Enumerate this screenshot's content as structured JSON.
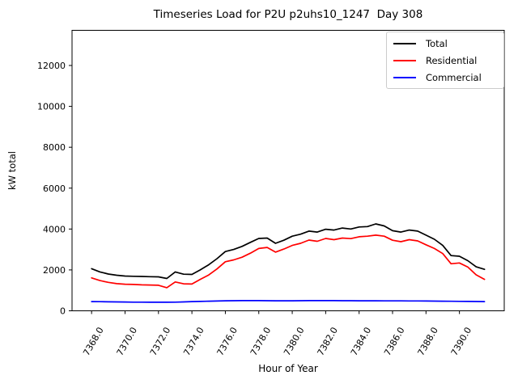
{
  "chart_data": {
    "type": "line",
    "title": "Timeseries Load for P2U p2uhs10_1247  Day 308",
    "xlabel": "Hour of Year",
    "ylabel": "kW total",
    "grid": false,
    "legend_position": "upper right",
    "xlim": [
      7366.83,
      7392.68
    ],
    "ylim": [
      0,
      13720
    ],
    "x_start": 7368.0,
    "x_step": 0.5,
    "xtick_values": [
      7368,
      7370,
      7372,
      7374,
      7376,
      7378,
      7380,
      7382,
      7384,
      7386,
      7388,
      7390
    ],
    "xtick_labels": [
      "7368.0",
      "7370.0",
      "7372.0",
      "7374.0",
      "7376.0",
      "7378.0",
      "7380.0",
      "7382.0",
      "7384.0",
      "7386.0",
      "7388.0",
      "7390.0"
    ],
    "xtick_rotation": 60,
    "ytick_values": [
      0,
      2000,
      4000,
      6000,
      8000,
      10000,
      12000
    ],
    "ytick_labels": [
      "0",
      "2000",
      "4000",
      "6000",
      "8000",
      "10000",
      "12000"
    ],
    "series": [
      {
        "name": "Total",
        "color": "#000000",
        "values": [
          2060,
          1900,
          1800,
          1740,
          1700,
          1690,
          1680,
          1670,
          1660,
          1580,
          1900,
          1790,
          1780,
          2000,
          2250,
          2550,
          2900,
          3000,
          3150,
          3350,
          3540,
          3560,
          3300,
          3450,
          3650,
          3750,
          3900,
          3850,
          3990,
          3950,
          4050,
          4000,
          4100,
          4120,
          4250,
          4150,
          3920,
          3850,
          3950,
          3900,
          3700,
          3500,
          3200,
          2700,
          2670,
          2450,
          2150,
          2030
        ]
      },
      {
        "name": "Residential",
        "color": "#ff0000",
        "values": [
          1610,
          1480,
          1390,
          1330,
          1300,
          1290,
          1270,
          1260,
          1250,
          1130,
          1410,
          1320,
          1310,
          1540,
          1750,
          2050,
          2400,
          2490,
          2620,
          2820,
          3050,
          3100,
          2870,
          3020,
          3200,
          3300,
          3460,
          3400,
          3540,
          3480,
          3560,
          3530,
          3620,
          3650,
          3700,
          3650,
          3450,
          3380,
          3480,
          3420,
          3230,
          3050,
          2800,
          2300,
          2340,
          2140,
          1760,
          1540
        ]
      },
      {
        "name": "Commercial",
        "color": "#0000ff",
        "values": [
          450,
          445,
          440,
          435,
          430,
          425,
          422,
          420,
          418,
          418,
          425,
          435,
          450,
          460,
          470,
          480,
          490,
          495,
          500,
          500,
          498,
          495,
          492,
          490,
          492,
          495,
          498,
          500,
          500,
          498,
          495,
          493,
          492,
          490,
          490,
          488,
          486,
          485,
          484,
          482,
          480,
          476,
          472,
          468,
          464,
          460,
          455,
          450
        ]
      }
    ]
  }
}
